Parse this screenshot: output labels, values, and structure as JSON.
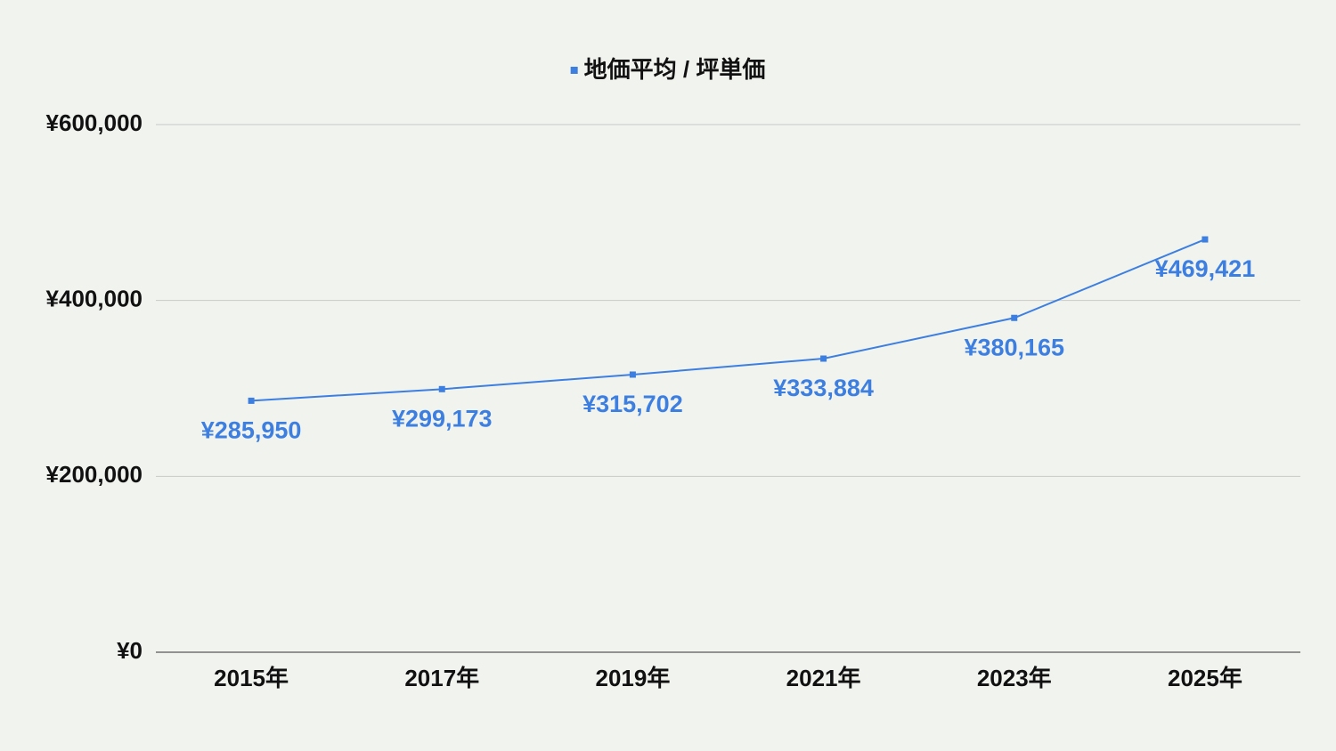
{
  "chart_data": {
    "type": "line",
    "categories": [
      "2015年",
      "2017年",
      "2019年",
      "2021年",
      "2023年",
      "2025年"
    ],
    "series": [
      {
        "name": "地価平均 / 坪単価",
        "color": "#3d7fe0",
        "values": [
          285950,
          299173,
          315702,
          333884,
          380165,
          469421
        ],
        "value_labels": [
          "¥285,950",
          "¥299,173",
          "¥315,702",
          "¥333,884",
          "¥380,165",
          "¥469,421"
        ]
      }
    ],
    "ylim": [
      0,
      600000
    ],
    "yticks": [
      {
        "value": 0,
        "label": "¥0"
      },
      {
        "value": 200000,
        "label": "¥200,000"
      },
      {
        "value": 400000,
        "label": "¥400,000"
      },
      {
        "value": 600000,
        "label": "¥600,000"
      }
    ],
    "grid": true,
    "legend": "top"
  }
}
